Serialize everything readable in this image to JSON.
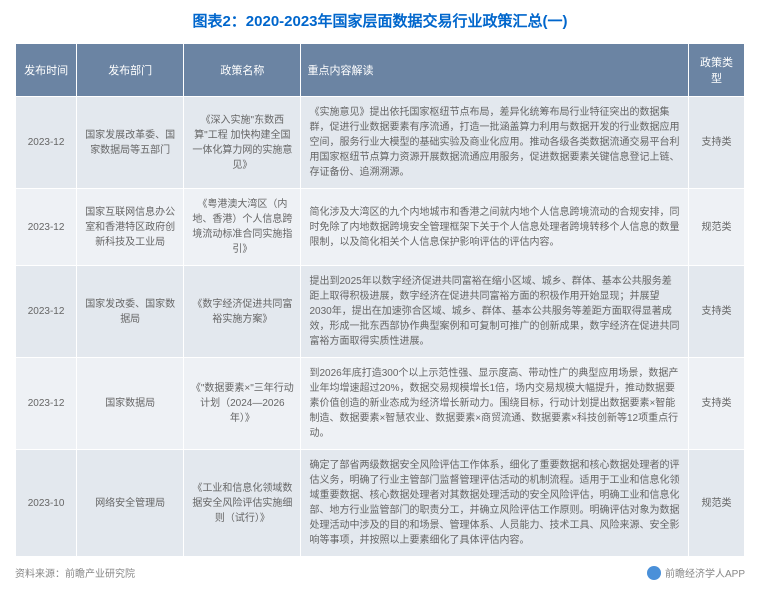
{
  "title": "图表2：2020-2023年国家层面数据交易行业政策汇总(一)",
  "columns": [
    "发布时间",
    "发布部门",
    "政策名称",
    "重点内容解读",
    "政策类型"
  ],
  "rows": [
    {
      "date": "2023-12",
      "dept": "国家发展改革委、国家数据局等五部门",
      "name": "《深入实施\"东数西算\"工程 加快构建全国一体化算力网的实施意见》",
      "content": "《实施意见》提出依托国家枢纽节点布局，差异化统筹布局行业特征突出的数据集群，促进行业数据要素有序流通，打造一批涵盖算力利用与数据开发的行业数据应用空间，服务行业大模型的基础实验及商业化应用。推动各级各类数据流通交易平台利用国家枢纽节点算力资源开展数据流通应用服务，促进数据要素关键信息登记上链、存证备份、追溯溯源。",
      "type": "支持类"
    },
    {
      "date": "2023-12",
      "dept": "国家互联网信息办公室和香港特区政府创新科技及工业局",
      "name": "《粤港澳大湾区（内地、香港）个人信息跨境流动标准合同实施指引》",
      "content": "简化涉及大湾区的九个内地城市和香港之间就内地个人信息跨境流动的合规安排，同时免除了内地数据跨境安全管理框架下关于个人信息处理者跨境转移个人信息的数量限制，以及简化相关个人信息保护影响评估的评估内容。",
      "type": "规范类"
    },
    {
      "date": "2023-12",
      "dept": "国家发改委、国家数据局",
      "name": "《数字经济促进共同富裕实施方案》",
      "content": "提出到2025年以数字经济促进共同富裕在缩小区域、城乡、群体、基本公共服务差距上取得积极进展，数字经济在促进共同富裕方面的积极作用开始显现；并展望2030年，提出在加速弥合区域、城乡、群体、基本公共服务等差距方面取得显著成效，形成一批东西部协作典型案例和可复制可推广的创新成果，数字经济在促进共同富裕方面取得实质性进展。",
      "type": "支持类"
    },
    {
      "date": "2023-12",
      "dept": "国家数据局",
      "name": "《\"数据要素×\"三年行动计划（2024—2026年）》",
      "content": "到2026年底打造300个以上示范性强、显示度高、带动性广的典型应用场景，数据产业年均增速超过20%，数据交易规模增长1倍，场内交易规模大幅提升，推动数据要素价值创造的新业态成为经济增长新动力。围绕目标，行动计划提出数据要素×智能制造、数据要素×智慧农业、数据要素×商贸流通、数据要素×科技创新等12项重点行动。",
      "type": "支持类"
    },
    {
      "date": "2023-10",
      "dept": "网络安全管理局",
      "name": "《工业和信息化领域数据安全风险评估实施细则（试行）》",
      "content": "确定了部省两级数据安全风险评估工作体系，细化了重要数据和核心数据处理者的评估义务，明确了行业主管部门监督管理评估活动的机制流程。适用于工业和信息化领域重要数据、核心数据处理者对其数据处理活动的安全风险评估，明确工业和信息化部、地方行业监管部门的职责分工，并确立风险评估工作原则。明确评估对象为数据处理活动中涉及的目的和场景、管理体系、人员能力、技术工具、风险来源、安全影响等事项，并按照以上要素细化了具体评估内容。",
      "type": "规范类"
    }
  ],
  "footer": {
    "source": "资料来源：前瞻产业研究院",
    "brand": "前瞻经济学人APP"
  },
  "colors": {
    "header_bg": "#6b84a3",
    "row_even": "#eef1f5",
    "row_odd": "#e3e8ee",
    "title_color": "#0066cc",
    "text_color": "#666666"
  }
}
